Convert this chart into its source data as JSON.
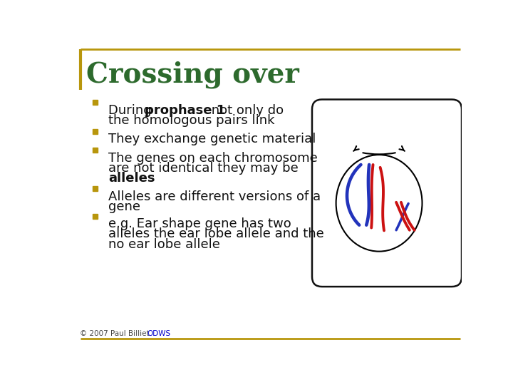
{
  "title": "Crossing over",
  "title_color": "#2D6A2D",
  "title_fontsize": 28,
  "bg_color": "#FFFFFF",
  "border_color": "#B8960C",
  "bullet_color": "#B8960C",
  "text_color": "#111111",
  "footer_text": "© 2007 Paul Billiet ODWS",
  "footer_link": "ODWS",
  "footer_color": "#444444",
  "footer_link_color": "#0000CC",
  "cell_box_color": "#111111",
  "blue_color": "#2233BB",
  "red_color": "#CC1111",
  "bullet_entries": [
    {
      "first_segments": [
        [
          "During ",
          false
        ],
        [
          "prophase 1",
          true
        ],
        [
          " not only do",
          false
        ]
      ],
      "extra_lines": [
        [
          "the homologous pairs link",
          false
        ]
      ]
    },
    {
      "first_segments": [
        [
          "They exchange genetic material",
          false
        ]
      ],
      "extra_lines": []
    },
    {
      "first_segments": [
        [
          "The genes on each chromosome",
          false
        ]
      ],
      "extra_lines": [
        [
          "are not identical they may be",
          false
        ],
        [
          "alleles",
          true
        ]
      ]
    },
    {
      "first_segments": [
        [
          "Alleles are different versions of a",
          false
        ]
      ],
      "extra_lines": [
        [
          "gene",
          false
        ]
      ]
    },
    {
      "first_segments": [
        [
          "e.g. Ear shape gene has two",
          false
        ]
      ],
      "extra_lines": [
        [
          "alleles the ear lobe allele and the",
          false
        ],
        [
          "no ear lobe allele",
          false
        ]
      ]
    }
  ]
}
